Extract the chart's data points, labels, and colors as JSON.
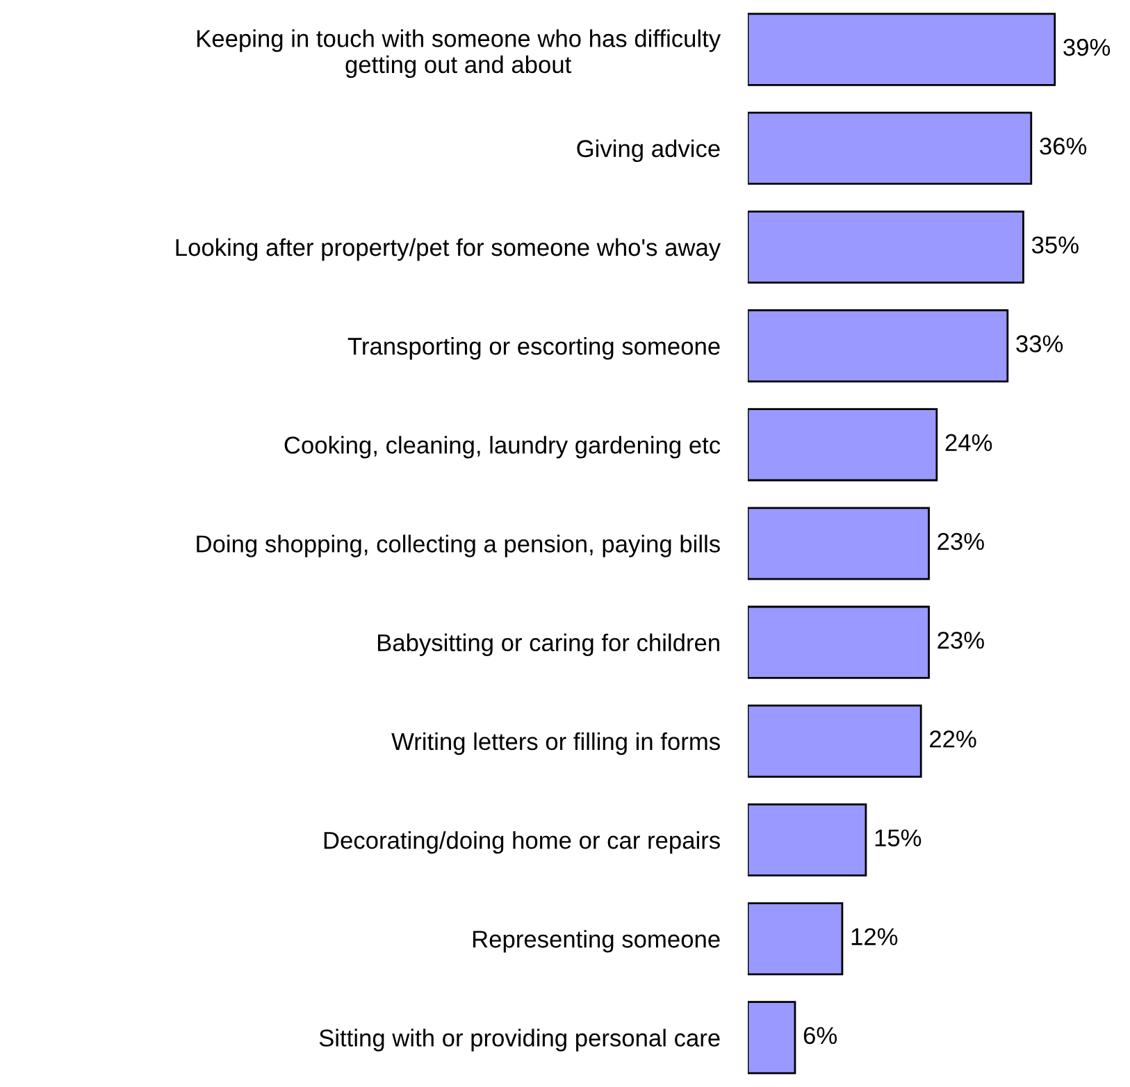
{
  "chart_data": {
    "type": "bar",
    "orientation": "horizontal",
    "categories": [
      "Keeping in touch with someone who has difficulty\ngetting out and about",
      "Giving advice",
      "Looking after property/pet for someone who's away",
      "Transporting or escorting someone",
      "Cooking, cleaning, laundry gardening etc",
      "Doing shopping, collecting a pension, paying bills",
      "Babysitting or caring for children",
      "Writing letters or filling in forms",
      "Decorating/doing home or car repairs",
      "Representing someone",
      "Sitting with or providing personal care"
    ],
    "values": [
      39,
      36,
      35,
      33,
      24,
      23,
      23,
      22,
      15,
      12,
      6
    ],
    "value_labels": [
      "39%",
      "36%",
      "35%",
      "33%",
      "24%",
      "23%",
      "23%",
      "22%",
      "15%",
      "12%",
      "6%"
    ],
    "color": "#9999ff",
    "grid": false,
    "legend": false
  }
}
